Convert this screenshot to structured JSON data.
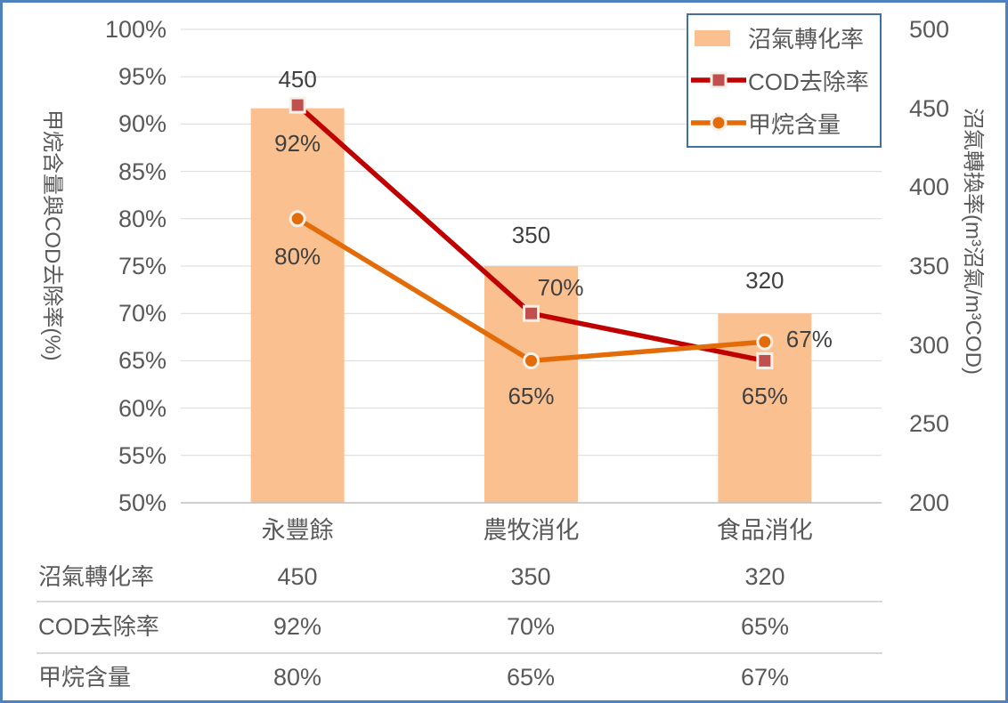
{
  "frame": {
    "border_color": "#4F81BD",
    "background": "#FFFFFF"
  },
  "chart_data": {
    "type": "bar",
    "subtype": "combo-bar-line-dual-axis",
    "categories": [
      "永豐餘",
      "農牧消化",
      "食品消化"
    ],
    "series": [
      {
        "name": "沼氣轉化率",
        "chart_type": "bar",
        "axis": "right",
        "values": [
          450,
          350,
          320
        ],
        "data_labels": [
          "450",
          "350",
          "320"
        ],
        "color": "#FAC090"
      },
      {
        "name": "COD去除率",
        "chart_type": "line",
        "axis": "left",
        "values": [
          92,
          70,
          65
        ],
        "data_labels": [
          "92%",
          "70%",
          "65%"
        ],
        "color": "#C00000",
        "marker": "square",
        "marker_fill": "#C0504D"
      },
      {
        "name": "甲烷含量",
        "chart_type": "line",
        "axis": "left",
        "values": [
          80,
          65,
          67
        ],
        "data_labels": [
          "80%",
          "65%",
          "67%"
        ],
        "color": "#E36C09",
        "marker": "circle",
        "marker_fill": "#E36C09"
      }
    ],
    "left_axis": {
      "title": "甲烷含量與COD去除率(%)",
      "min": 50,
      "max": 100,
      "step": 5,
      "tick_labels": [
        "100%",
        "95%",
        "90%",
        "85%",
        "80%",
        "75%",
        "70%",
        "65%",
        "60%",
        "55%",
        "50%"
      ]
    },
    "right_axis": {
      "title": "沼氣轉換率(m³沼氣/m³COD)",
      "min": 200,
      "max": 500,
      "step": 50,
      "tick_labels": [
        "500",
        "450",
        "400",
        "350",
        "300",
        "250",
        "200"
      ]
    },
    "legend": {
      "position": "top-right",
      "entries": [
        "沼氣轉化率",
        "COD去除率",
        "甲烷含量"
      ]
    },
    "grid": true
  },
  "table": {
    "rows": [
      {
        "label": "沼氣轉化率",
        "values": [
          "450",
          "350",
          "320"
        ]
      },
      {
        "label": "COD去除率",
        "values": [
          "92%",
          "70%",
          "65%"
        ]
      },
      {
        "label": "甲烷含量",
        "values": [
          "80%",
          "65%",
          "67%"
        ]
      }
    ]
  },
  "colors": {
    "text": "#595959",
    "data_label": "#404040",
    "gridline": "#D9D9D9",
    "axis_line": "#BFBFBF",
    "legend_border": "#41719C",
    "marker_halo": "#F6F1E8"
  }
}
